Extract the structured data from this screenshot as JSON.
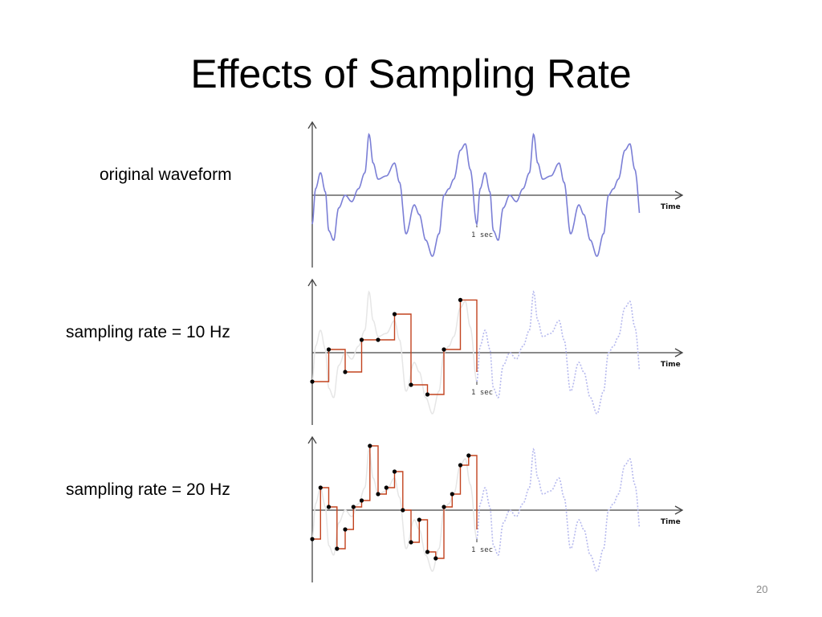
{
  "slide": {
    "title": "Effects of Sampling Rate",
    "page_number": "20"
  },
  "colors": {
    "waveform": "#7b7fd6",
    "waveform_ghost": "#b6b9ee",
    "step": "#c2431f",
    "sample_point": "#000000"
  },
  "chart_data": [
    {
      "type": "line",
      "label": "original waveform",
      "xlabel": "Time",
      "tick_label": "1 sec",
      "xlim": [
        0,
        2
      ],
      "ylim": [
        -1,
        1
      ],
      "series": [
        {
          "name": "original waveform",
          "x_range": [
            0,
            2
          ]
        }
      ]
    },
    {
      "type": "line",
      "label": "sampling rate = 10 Hz",
      "xlabel": "Time",
      "tick_label": "1 sec",
      "sample_rate_hz": 10,
      "xlim": [
        0,
        2
      ],
      "ylim": [
        -1,
        1
      ],
      "sample_x": [
        0,
        0.1,
        0.2,
        0.3,
        0.4,
        0.5,
        0.6,
        0.7,
        0.8,
        0.9
      ],
      "sample_y": [
        -0.45,
        0.05,
        -0.3,
        0.2,
        0.2,
        0.6,
        -0.5,
        -0.65,
        0.05,
        0.82
      ]
    },
    {
      "type": "line",
      "label": "sampling rate = 20 Hz",
      "xlabel": "Time",
      "tick_label": "1 sec",
      "sample_rate_hz": 20,
      "xlim": [
        0,
        2
      ],
      "ylim": [
        -1,
        1
      ],
      "sample_x": [
        0,
        0.05,
        0.1,
        0.15,
        0.2,
        0.25,
        0.3,
        0.35,
        0.4,
        0.45,
        0.5,
        0.55,
        0.6,
        0.65,
        0.7,
        0.75,
        0.8,
        0.85,
        0.9,
        0.95
      ],
      "sample_y": [
        -0.45,
        0.35,
        0.05,
        -0.6,
        -0.3,
        0.05,
        0.15,
        1.0,
        0.25,
        0.35,
        0.6,
        0.0,
        -0.5,
        -0.15,
        -0.65,
        -0.75,
        0.05,
        0.25,
        0.7,
        0.85
      ]
    }
  ]
}
